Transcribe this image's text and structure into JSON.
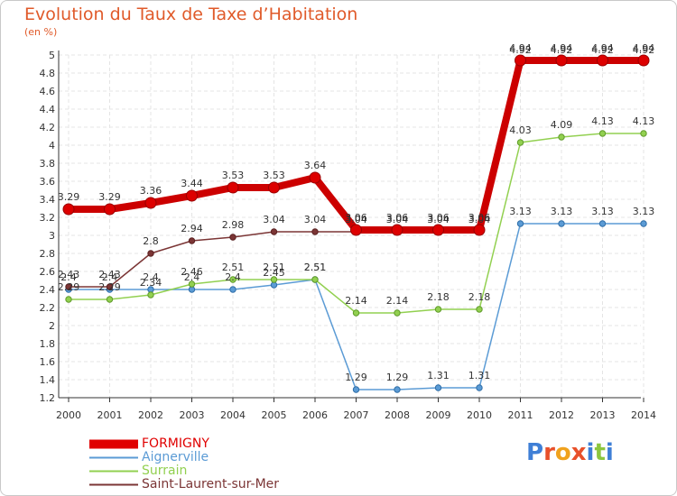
{
  "chart_data": {
    "type": "line",
    "title": "Evolution du Taux de Taxe d’Habitation",
    "subtitle": "(en %)",
    "x": [
      "2000",
      "2001",
      "2002",
      "2003",
      "2004",
      "2005",
      "2006",
      "2007",
      "2008",
      "2009",
      "2010",
      "2011",
      "2012",
      "2013",
      "2014"
    ],
    "ylim": [
      1.2,
      5
    ],
    "yticks": [
      "1.2",
      "1.4",
      "1.6",
      "1.8",
      "2",
      "2.2",
      "2.4",
      "2.6",
      "2.8",
      "3",
      "3.2",
      "3.4",
      "3.6",
      "3.8",
      "4",
      "4.2",
      "4.4",
      "4.6",
      "4.8",
      "5"
    ],
    "grid": true,
    "series": [
      {
        "name": "FORMIGNY",
        "color": "#e00000",
        "values": [
          3.29,
          3.29,
          3.36,
          3.44,
          3.53,
          3.53,
          3.64,
          3.06,
          3.06,
          3.06,
          3.06,
          4.94,
          4.94,
          4.94,
          4.94
        ],
        "labels": [
          "3.29",
          "3.29",
          "3.36",
          "3.44",
          "3.53",
          "3.53",
          "3.64",
          "3.06",
          "3.06",
          "3.06",
          "3.06",
          "4.94",
          "4.94",
          "4.94",
          "4.94"
        ]
      },
      {
        "name": "Aignerville",
        "color": "#5b9bd5",
        "values": [
          2.4,
          2.4,
          2.4,
          2.4,
          2.4,
          2.45,
          2.51,
          1.29,
          1.29,
          1.31,
          1.31,
          3.13,
          3.13,
          3.13,
          3.13
        ],
        "labels": [
          "2.4",
          "2.4",
          "2.4",
          "2.4",
          "2.4",
          "2.45",
          "2.51",
          "1.29",
          "1.29",
          "1.31",
          "1.31",
          "3.13",
          "3.13",
          "3.13",
          "3.13"
        ]
      },
      {
        "name": "Surrain",
        "color": "#92d050",
        "values": [
          2.29,
          2.29,
          2.34,
          2.46,
          2.51,
          2.51,
          2.51,
          2.14,
          2.14,
          2.18,
          2.18,
          4.03,
          4.09,
          4.13,
          4.13
        ],
        "labels": [
          "2.29",
          "2.29",
          "2.34",
          "2.46",
          "2.51",
          "2.51",
          "2.51",
          "2.14",
          "2.14",
          "2.18",
          "2.18",
          "4.03",
          "4.09",
          "4.13",
          "4.13"
        ]
      },
      {
        "name": "Saint-Laurent-sur-Mer",
        "color": "#7b3535",
        "values": [
          2.43,
          2.43,
          2.8,
          2.94,
          2.98,
          3.04,
          3.04,
          3.04,
          3.04,
          3.04,
          3.04,
          4.92,
          4.92,
          4.92,
          4.92
        ],
        "labels": [
          "2.43",
          "2.43",
          "2.8",
          "2.94",
          "2.98",
          "3.04",
          "3.04",
          "3.04",
          "3.04",
          "3.04",
          "3.04",
          "4.92",
          "4.92",
          "4.92",
          "4.92"
        ]
      }
    ]
  },
  "branding": {
    "logo_text": "Proxiti"
  }
}
